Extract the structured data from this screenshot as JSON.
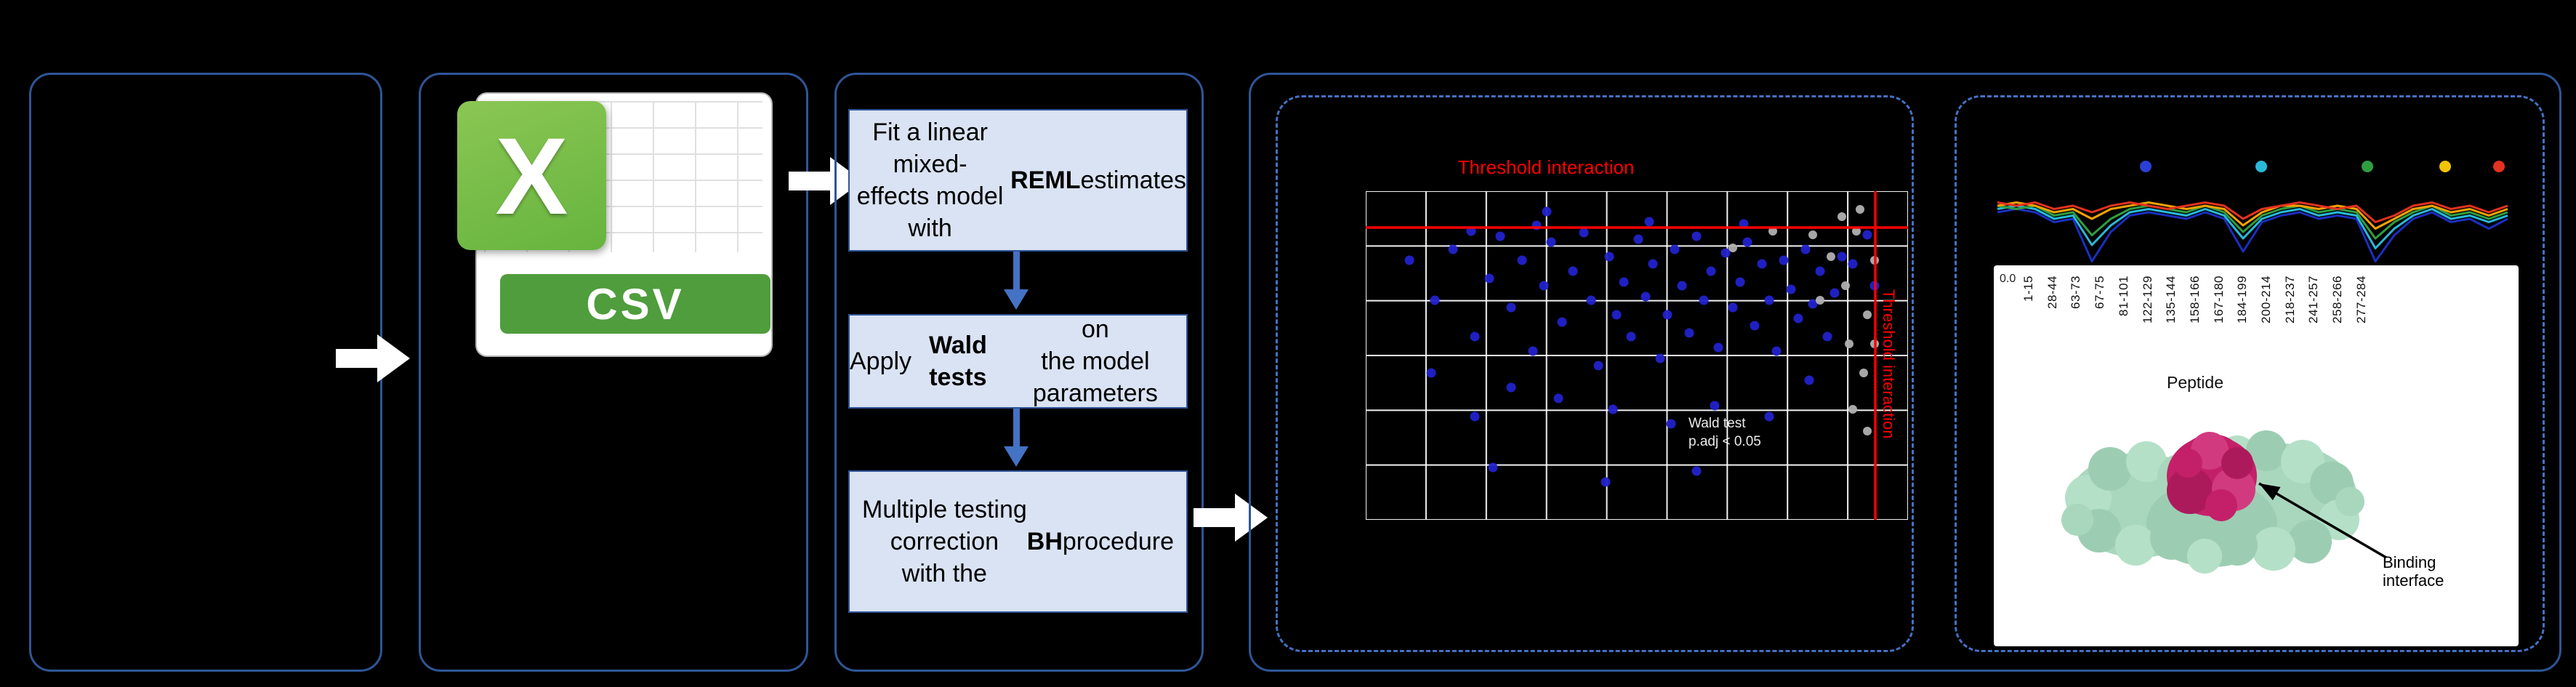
{
  "colors": {
    "background": "#000000",
    "panel_border": "#2f5597",
    "dashed_border": "#4472c4",
    "flow_blue": "#4472c4",
    "box_fill": "#dae3f3",
    "box_border": "#2f5597",
    "arrow_white": "#ffffff",
    "threshold_red": "#ff0000",
    "point_blue": "#2222cc",
    "point_gray": "#b0b0b0",
    "grid_white": "#ffffff",
    "csv_green": "#66b43f",
    "csv_banner_green": "#4f9d3c",
    "protein_green": "#a9d7bd",
    "binding_magenta": "#c42069"
  },
  "csv": {
    "letter": "X",
    "label": "CSV"
  },
  "steps": [
    {
      "segments": [
        {
          "text": "Fit a linear mixed-\neffects model with\n"
        },
        {
          "text": "REML",
          "bold": true
        },
        {
          "text": " estimates"
        }
      ]
    },
    {
      "segments": [
        {
          "text": "Apply "
        },
        {
          "text": "Wald tests",
          "bold": true
        },
        {
          "text": " on\nthe model parameters"
        }
      ]
    },
    {
      "segments": [
        {
          "text": "Multiple testing\ncorrection\nwith the "
        },
        {
          "text": "BH",
          "bold": true
        },
        {
          "text": " procedure"
        }
      ]
    }
  ],
  "chart_data": [
    {
      "type": "scatter",
      "title": "Threshold interaction",
      "side_label": "Threshold interaction",
      "annotation": [
        "Wald test",
        "p.adj < 0.05"
      ],
      "grid": {
        "cols": 9,
        "rows": 6
      },
      "threshold_y": 50,
      "threshold_x": 701,
      "points_blue": [
        [
          60,
          95
        ],
        [
          95,
          150
        ],
        [
          120,
          80
        ],
        [
          150,
          200
        ],
        [
          170,
          120
        ],
        [
          185,
          62
        ],
        [
          200,
          160
        ],
        [
          215,
          95
        ],
        [
          230,
          220
        ],
        [
          245,
          130
        ],
        [
          255,
          70
        ],
        [
          270,
          180
        ],
        [
          285,
          110
        ],
        [
          300,
          57
        ],
        [
          310,
          150
        ],
        [
          320,
          240
        ],
        [
          335,
          90
        ],
        [
          345,
          170
        ],
        [
          355,
          125
        ],
        [
          365,
          200
        ],
        [
          375,
          66
        ],
        [
          385,
          145
        ],
        [
          395,
          100
        ],
        [
          405,
          230
        ],
        [
          415,
          170
        ],
        [
          425,
          80
        ],
        [
          435,
          130
        ],
        [
          445,
          195
        ],
        [
          455,
          62
        ],
        [
          465,
          150
        ],
        [
          475,
          110
        ],
        [
          485,
          215
        ],
        [
          495,
          85
        ],
        [
          505,
          160
        ],
        [
          515,
          125
        ],
        [
          525,
          70
        ],
        [
          535,
          185
        ],
        [
          545,
          100
        ],
        [
          555,
          150
        ],
        [
          565,
          220
        ],
        [
          575,
          95
        ],
        [
          585,
          135
        ],
        [
          595,
          175
        ],
        [
          605,
          80
        ],
        [
          615,
          155
        ],
        [
          625,
          110
        ],
        [
          635,
          200
        ],
        [
          645,
          140
        ],
        [
          655,
          90
        ],
        [
          340,
          300
        ],
        [
          150,
          310
        ],
        [
          420,
          320
        ],
        [
          265,
          285
        ],
        [
          480,
          295
        ],
        [
          90,
          250
        ],
        [
          555,
          310
        ],
        [
          610,
          260
        ],
        [
          200,
          270
        ],
        [
          700,
          130
        ],
        [
          690,
          60
        ],
        [
          670,
          100
        ],
        [
          145,
          55
        ],
        [
          520,
          45
        ],
        [
          390,
          42
        ],
        [
          235,
          47
        ],
        [
          249,
          28
        ],
        [
          175,
          380
        ],
        [
          330,
          400
        ],
        [
          455,
          385
        ]
      ],
      "points_gray": [
        [
          615,
          60
        ],
        [
          640,
          90
        ],
        [
          660,
          130
        ],
        [
          675,
          55
        ],
        [
          690,
          170
        ],
        [
          665,
          210
        ],
        [
          685,
          250
        ],
        [
          670,
          300
        ],
        [
          690,
          330
        ],
        [
          700,
          95
        ],
        [
          655,
          35
        ],
        [
          625,
          150
        ],
        [
          700,
          210
        ],
        [
          680,
          25
        ],
        [
          560,
          55
        ],
        [
          505,
          78
        ]
      ]
    },
    {
      "type": "line",
      "ytick": "0.0",
      "xlabel": "Peptide",
      "peptides": [
        "1-15",
        "28-44",
        "63-73",
        "67-75",
        "81-101",
        "122-129",
        "135-144",
        "158-166",
        "167-180",
        "184-199",
        "200-214",
        "218-237",
        "241-257",
        "258-266",
        "277-284"
      ],
      "legend_colors": [
        "#2a3fd4",
        "#2ab9d9",
        "#2f9e41",
        "#f0c400",
        "#e33220"
      ],
      "legend_x": [
        214,
        373,
        519,
        626,
        700
      ],
      "series": [
        {
          "color": "#1b2fbf",
          "values": [
            0.2,
            0.15,
            0.2,
            0.35,
            0.3,
            0.95,
            0.5,
            0.25,
            0.2,
            0.25,
            0.3,
            0.2,
            0.3,
            0.8,
            0.35,
            0.25,
            0.2,
            0.3,
            0.25,
            0.3,
            0.95,
            0.55,
            0.3,
            0.2,
            0.35,
            0.3,
            0.45,
            0.3
          ]
        },
        {
          "color": "#28b9d9",
          "values": [
            0.15,
            0.1,
            0.15,
            0.3,
            0.25,
            0.7,
            0.4,
            0.2,
            0.15,
            0.2,
            0.25,
            0.15,
            0.25,
            0.6,
            0.3,
            0.2,
            0.15,
            0.25,
            0.2,
            0.25,
            0.75,
            0.45,
            0.25,
            0.15,
            0.3,
            0.25,
            0.35,
            0.25
          ]
        },
        {
          "color": "#2f9e41",
          "values": [
            0.1,
            0.15,
            0.1,
            0.25,
            0.2,
            0.55,
            0.3,
            0.15,
            0.1,
            0.15,
            0.2,
            0.1,
            0.2,
            0.5,
            0.25,
            0.15,
            0.1,
            0.2,
            0.15,
            0.2,
            0.6,
            0.35,
            0.2,
            0.1,
            0.25,
            0.2,
            0.3,
            0.2
          ]
        },
        {
          "color": "#f5a300",
          "values": [
            0.1,
            0.05,
            0.1,
            0.2,
            0.15,
            0.3,
            0.15,
            0.1,
            0.05,
            0.1,
            0.15,
            0.1,
            0.15,
            0.4,
            0.2,
            0.1,
            0.1,
            0.15,
            0.1,
            0.15,
            0.45,
            0.3,
            0.15,
            0.1,
            0.2,
            0.15,
            0.25,
            0.15
          ]
        },
        {
          "color": "#e33220",
          "values": [
            0.05,
            0.1,
            0.05,
            0.15,
            0.1,
            0.2,
            0.1,
            0.05,
            0.1,
            0.15,
            0.1,
            0.05,
            0.1,
            0.3,
            0.15,
            0.1,
            0.05,
            0.1,
            0.15,
            0.1,
            0.35,
            0.25,
            0.1,
            0.05,
            0.15,
            0.1,
            0.2,
            0.1
          ]
        }
      ]
    }
  ],
  "structure": {
    "caption": [
      "Binding",
      "interface"
    ]
  }
}
